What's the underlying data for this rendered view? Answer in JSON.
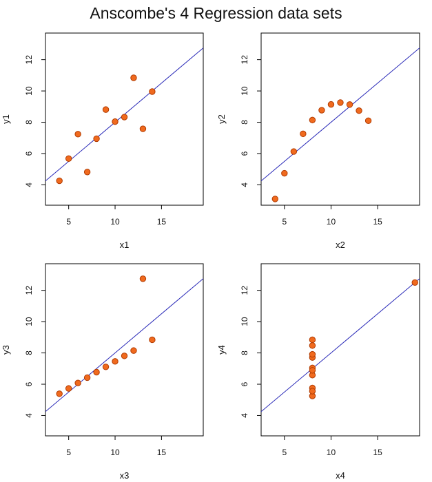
{
  "title": "Anscombe's 4 Regression data sets",
  "chart_data": [
    {
      "type": "scatter",
      "xlabel": "x1",
      "ylabel": "y1",
      "xlim": [
        2.5,
        19.5
      ],
      "ylim": [
        2.7,
        13.7
      ],
      "xticks": [
        5,
        10,
        15
      ],
      "yticks": [
        4,
        6,
        8,
        10,
        12
      ],
      "points": [
        [
          10,
          8.04
        ],
        [
          8,
          6.95
        ],
        [
          13,
          7.58
        ],
        [
          9,
          8.81
        ],
        [
          11,
          8.33
        ],
        [
          14,
          9.96
        ],
        [
          6,
          7.24
        ],
        [
          4,
          4.26
        ],
        [
          12,
          10.84
        ],
        [
          7,
          4.82
        ],
        [
          5,
          5.68
        ]
      ],
      "fit": {
        "intercept": 3.0,
        "slope": 0.5
      },
      "point_fill": "#f06a1e",
      "point_stroke": "#b03a00",
      "line_color": "#2a2ab8"
    },
    {
      "type": "scatter",
      "xlabel": "x2",
      "ylabel": "y2",
      "xlim": [
        2.5,
        19.5
      ],
      "ylim": [
        2.7,
        13.7
      ],
      "xticks": [
        5,
        10,
        15
      ],
      "yticks": [
        4,
        6,
        8,
        10,
        12
      ],
      "points": [
        [
          10,
          9.14
        ],
        [
          8,
          8.14
        ],
        [
          13,
          8.74
        ],
        [
          9,
          8.77
        ],
        [
          11,
          9.26
        ],
        [
          14,
          8.1
        ],
        [
          6,
          6.13
        ],
        [
          4,
          3.1
        ],
        [
          12,
          9.13
        ],
        [
          7,
          7.26
        ],
        [
          5,
          4.74
        ]
      ],
      "fit": {
        "intercept": 3.0,
        "slope": 0.5
      },
      "point_fill": "#f06a1e",
      "point_stroke": "#b03a00",
      "line_color": "#2a2ab8"
    },
    {
      "type": "scatter",
      "xlabel": "x3",
      "ylabel": "y3",
      "xlim": [
        2.5,
        19.5
      ],
      "ylim": [
        2.7,
        13.7
      ],
      "xticks": [
        5,
        10,
        15
      ],
      "yticks": [
        4,
        6,
        8,
        10,
        12
      ],
      "points": [
        [
          10,
          7.46
        ],
        [
          8,
          6.77
        ],
        [
          13,
          12.74
        ],
        [
          9,
          7.11
        ],
        [
          11,
          7.81
        ],
        [
          14,
          8.84
        ],
        [
          6,
          6.08
        ],
        [
          4,
          5.39
        ],
        [
          12,
          8.15
        ],
        [
          7,
          6.42
        ],
        [
          5,
          5.73
        ]
      ],
      "fit": {
        "intercept": 3.0,
        "slope": 0.5
      },
      "point_fill": "#f06a1e",
      "point_stroke": "#b03a00",
      "line_color": "#2a2ab8"
    },
    {
      "type": "scatter",
      "xlabel": "x4",
      "ylabel": "y4",
      "xlim": [
        2.5,
        19.5
      ],
      "ylim": [
        2.7,
        13.7
      ],
      "xticks": [
        5,
        10,
        15
      ],
      "yticks": [
        4,
        6,
        8,
        10,
        12
      ],
      "points": [
        [
          8,
          6.58
        ],
        [
          8,
          5.76
        ],
        [
          8,
          7.71
        ],
        [
          8,
          8.84
        ],
        [
          8,
          8.47
        ],
        [
          8,
          7.04
        ],
        [
          8,
          5.25
        ],
        [
          19,
          12.5
        ],
        [
          8,
          5.56
        ],
        [
          8,
          7.91
        ],
        [
          8,
          6.89
        ]
      ],
      "fit": {
        "intercept": 3.0,
        "slope": 0.5
      },
      "point_fill": "#f06a1e",
      "point_stroke": "#b03a00",
      "line_color": "#2a2ab8"
    }
  ]
}
